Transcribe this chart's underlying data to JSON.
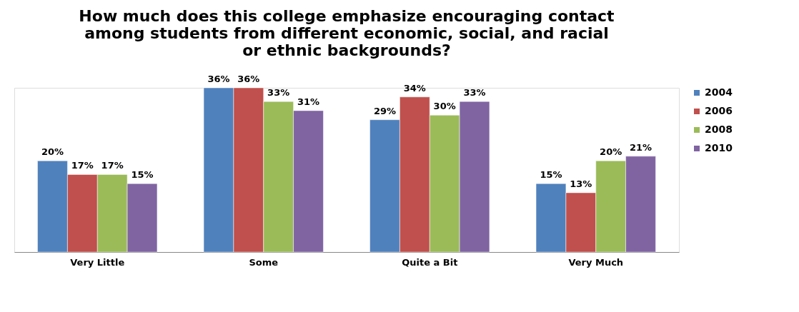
{
  "chart_data": {
    "type": "bar",
    "title": "How much does this college emphasize encouraging contact among students from different economic, social, and racial or ethnic backgrounds?",
    "categories": [
      "Very Little",
      "Some",
      "Quite a Bit",
      "Very Much"
    ],
    "series": [
      {
        "name": "2004",
        "color": "#4f81bd",
        "values": [
          20,
          36,
          29,
          15
        ],
        "value_labels": [
          "20%",
          "36%",
          "29%",
          "15%"
        ]
      },
      {
        "name": "2006",
        "color": "#c0504d",
        "values": [
          17,
          36,
          34,
          13
        ],
        "value_labels": [
          "17%",
          "36%",
          "34%",
          "13%"
        ]
      },
      {
        "name": "2008",
        "color": "#9bbb59",
        "values": [
          17,
          33,
          30,
          20
        ],
        "value_labels": [
          "17%",
          "33%",
          "30%",
          "20%"
        ]
      },
      {
        "name": "2010",
        "color": "#8064a2",
        "values": [
          15,
          31,
          33,
          21
        ],
        "value_labels": [
          "15%",
          "31%",
          "33%",
          "21%"
        ]
      }
    ],
    "legend": "right",
    "grid": false,
    "tick_labels": "x"
  }
}
